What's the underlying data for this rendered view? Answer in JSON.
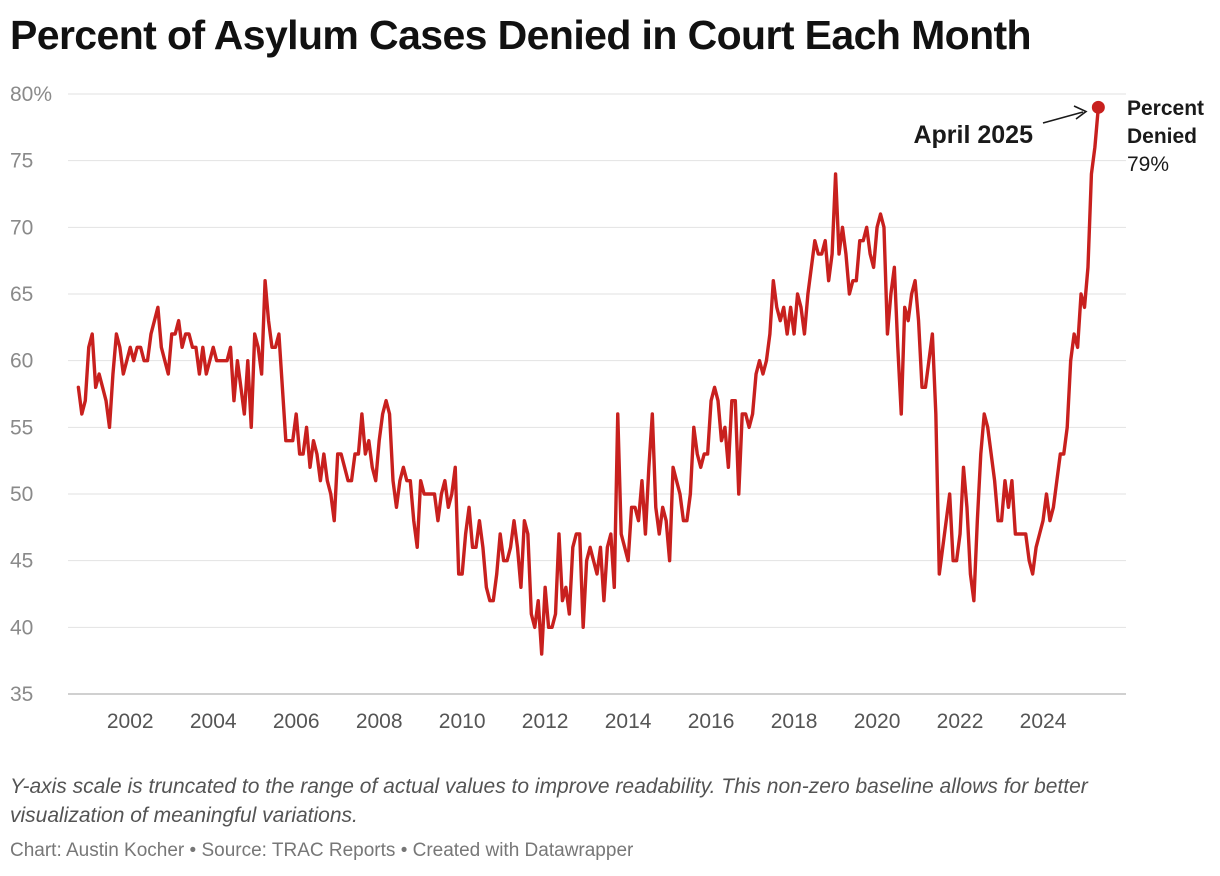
{
  "title": "Percent of Asylum Cases Denied in Court Each Month",
  "note": "Y-axis scale is truncated to the range of actual values to improve readability. This non-zero baseline allows for better visualization of meaningful variations.",
  "footer": "Chart: Austin Kocher • Source: TRAC Reports • Created with Datawrapper",
  "colors": {
    "line": "#c8201e",
    "grid": "#e2e2e2",
    "tick_text": "#8a8a8a"
  },
  "chart_data": {
    "type": "line",
    "title": "Percent of Asylum Cases Denied in Court Each Month",
    "xlabel": "",
    "ylabel": "",
    "ylim": [
      35,
      80
    ],
    "xlim": [
      2000.5,
      2026.0
    ],
    "grid": true,
    "y_ticks": [
      "35",
      "40",
      "45",
      "50",
      "55",
      "60",
      "65",
      "70",
      "75",
      "80%"
    ],
    "x_ticks": [
      "2002",
      "2004",
      "2006",
      "2008",
      "2010",
      "2012",
      "2014",
      "2016",
      "2018",
      "2020",
      "2022",
      "2024"
    ],
    "start": {
      "year": 2000,
      "month": 10
    },
    "series": [
      {
        "values": [
          58,
          56,
          57,
          61,
          62,
          58,
          59,
          58,
          57,
          55,
          59,
          62,
          61,
          59,
          60,
          61,
          60,
          61,
          61,
          60,
          60,
          62,
          63,
          64,
          61,
          60,
          59,
          62,
          62,
          63,
          61,
          62,
          62,
          61,
          61,
          59,
          61,
          59,
          60,
          61,
          60,
          60,
          60,
          60,
          61,
          57,
          60,
          58,
          56,
          60,
          55,
          62,
          61,
          59,
          66,
          63,
          61,
          61,
          62,
          58,
          54,
          54,
          54,
          56,
          53,
          53,
          55,
          52,
          54,
          53,
          51,
          53,
          51,
          50,
          48,
          53,
          53,
          52,
          51,
          51,
          53,
          53,
          56,
          53,
          54,
          52,
          51,
          54,
          56,
          57,
          56,
          51,
          49,
          51,
          52,
          51,
          51,
          48,
          46,
          51,
          50,
          50,
          50,
          50,
          48,
          50,
          51,
          49,
          50,
          52,
          44,
          44,
          47,
          49,
          46,
          46,
          48,
          46,
          43,
          42,
          42,
          44,
          47,
          45,
          45,
          46,
          48,
          46,
          43,
          48,
          47,
          41,
          40,
          42,
          38,
          43,
          40,
          40,
          41,
          47,
          42,
          43,
          41,
          46,
          47,
          47,
          40,
          45,
          46,
          45,
          44,
          46,
          42,
          46,
          47,
          43,
          56,
          47,
          46,
          45,
          49,
          49,
          48,
          51,
          47,
          52,
          56,
          49,
          47,
          49,
          48,
          45,
          52,
          51,
          50,
          48,
          48,
          50,
          55,
          53,
          52,
          53,
          53,
          57,
          58,
          57,
          54,
          55,
          52,
          57,
          57,
          50,
          56,
          56,
          55,
          56,
          59,
          60,
          59,
          60,
          62,
          66,
          64,
          63,
          64,
          62,
          64,
          62,
          65,
          64,
          62,
          65,
          67,
          69,
          68,
          68,
          69,
          66,
          68,
          74,
          68,
          70,
          68,
          65,
          66,
          66,
          69,
          69,
          70,
          68,
          67,
          70,
          71,
          70,
          62,
          65,
          67,
          61,
          56,
          64,
          63,
          65,
          66,
          63,
          58,
          58,
          60,
          62,
          56,
          44,
          46,
          48,
          50,
          45,
          45,
          47,
          52,
          49,
          44,
          42,
          48,
          53,
          56,
          55,
          53,
          51,
          48,
          48,
          51,
          49,
          51,
          47,
          47,
          47,
          47,
          45,
          44,
          46,
          47,
          48,
          50,
          48,
          49,
          51,
          53,
          53,
          55,
          60,
          62,
          61,
          65,
          64,
          67,
          74,
          76,
          79
        ]
      }
    ],
    "annotation": {
      "date_label": "April 2025",
      "series_label_line1": "Percent",
      "series_label_line2": "Denied",
      "value_label": "79%",
      "value": 79
    }
  }
}
